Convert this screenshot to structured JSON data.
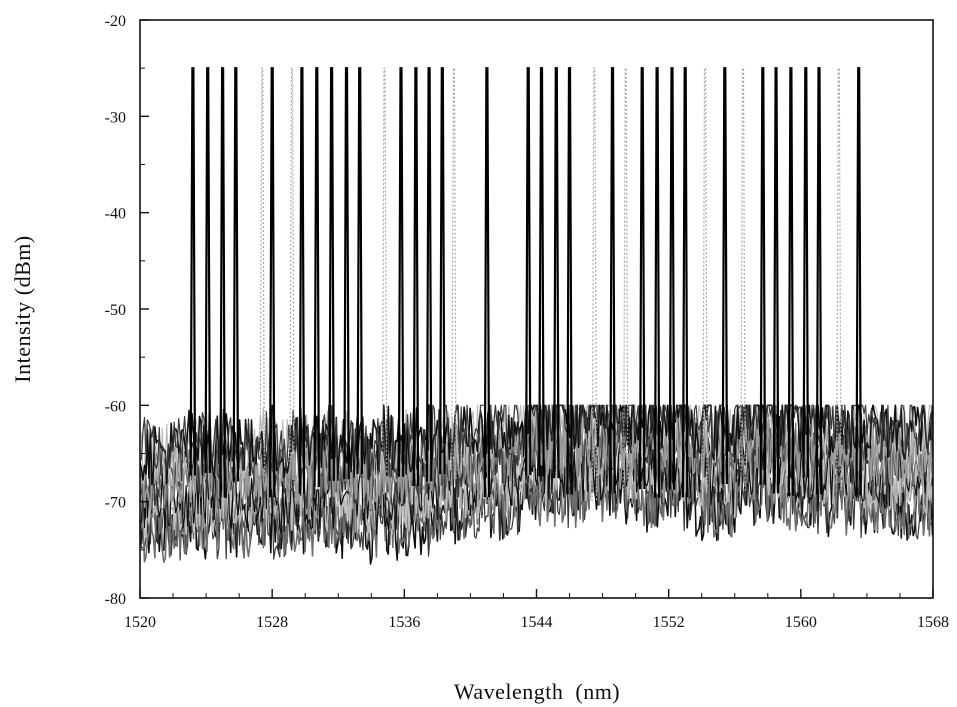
{
  "chart_data": {
    "type": "line",
    "title": "",
    "xlabel": "Wavelength  (nm)",
    "ylabel": "Intensity (dBm)",
    "xlim": [
      1520,
      1568
    ],
    "ylim": [
      -80,
      -20
    ],
    "xticks": [
      1520,
      1528,
      1536,
      1544,
      1552,
      1560,
      1568
    ],
    "yticks": [
      -20,
      -30,
      -40,
      -50,
      -60,
      -70,
      -80
    ],
    "x_tick_labels": [
      "1520",
      "1528",
      "1536",
      "1544",
      "1552",
      "1560",
      "1568"
    ],
    "y_tick_labels": [
      "-20",
      "-30",
      "-40",
      "-50",
      "-60",
      "-70",
      "-80"
    ],
    "grid": false,
    "legend": "none",
    "peak_level_dbm": -25,
    "noise_floor_range_dbm": [
      -77,
      -60
    ],
    "peaks": {
      "dark_nm": [
        1523.2,
        1524.1,
        1525.0,
        1525.8,
        1528.0,
        1529.8,
        1530.7,
        1531.6,
        1532.5,
        1533.3,
        1535.8,
        1536.7,
        1537.5,
        1538.3,
        1541.0,
        1543.5,
        1544.3,
        1545.2,
        1546.0,
        1548.6,
        1550.4,
        1551.3,
        1552.2,
        1553.0,
        1555.4,
        1557.7,
        1558.5,
        1559.4,
        1560.3,
        1561.1,
        1563.5
      ],
      "light_nm": [
        1527.4,
        1529.2,
        1534.8,
        1539.0,
        1547.5,
        1549.4,
        1554.2,
        1556.5,
        1562.3
      ]
    },
    "series_colors": [
      "#111111",
      "#3a3a3a",
      "#6e6e6e",
      "#9a9a9a",
      "#bdbdbd"
    ]
  }
}
